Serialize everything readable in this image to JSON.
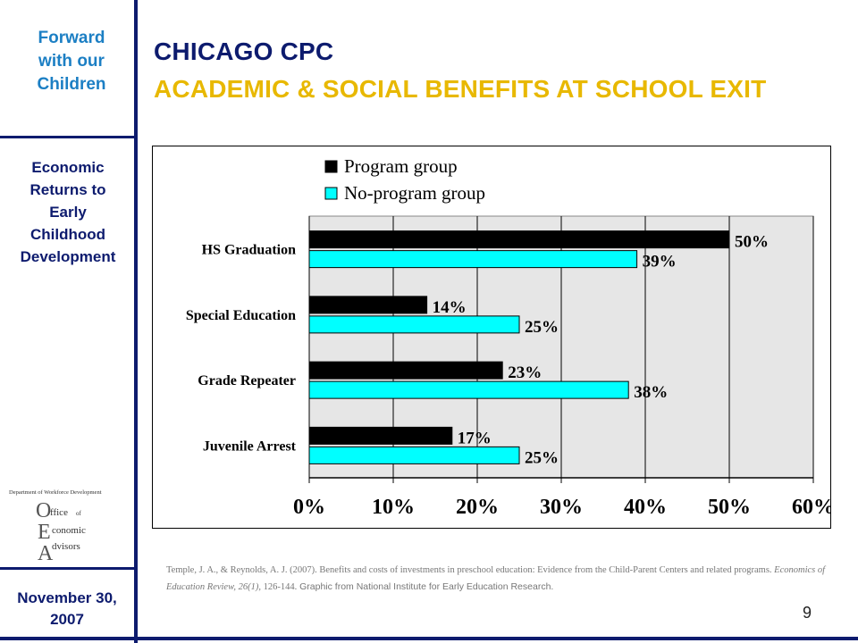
{
  "sidebar": {
    "brand_lines": [
      "Forward",
      "with our",
      "Children"
    ],
    "topic_lines": [
      "Economic",
      "Returns to",
      "Early",
      "Childhood",
      "Development"
    ],
    "date_lines": [
      "November 30,",
      "2007"
    ],
    "logo": {
      "dept_text": "Department of Workforce Development",
      "letters": [
        "O",
        "E",
        "A"
      ],
      "words": [
        "ffice",
        "of",
        "conomic",
        "dvisors"
      ]
    }
  },
  "slide": {
    "title_line1": "CHICAGO CPC",
    "title_line2": "ACADEMIC & SOCIAL BENEFITS AT SCHOOL EXIT",
    "page_number": "9"
  },
  "citation": {
    "part1": "Temple, J. A., & Reynolds, A. J. (2007). Benefits and costs of investments in preschool education: Evidence from the Child-Parent Centers and related programs. ",
    "part2": "Economics of Education Review, 26(1),",
    "part3": " 126-144.",
    "part4": " Graphic from National Institute for Early Education Research."
  },
  "colors": {
    "navy": "#0d1b6e",
    "brand_blue": "#1c7fc4",
    "gold": "#e8b800",
    "cyan": "#00ffff",
    "black": "#000000",
    "plot_bg": "#e6e6e6"
  },
  "chart_data": {
    "type": "bar",
    "orientation": "horizontal",
    "categories": [
      "HS Graduation",
      "Special Education",
      "Grade Repeater",
      "Juvenile Arrest"
    ],
    "series": [
      {
        "name": "Program group",
        "values": [
          50,
          14,
          23,
          17
        ],
        "color": "#000000"
      },
      {
        "name": "No-program group",
        "values": [
          39,
          25,
          38,
          25
        ],
        "color": "#00ffff"
      }
    ],
    "data_labels": [
      [
        "50%",
        "14%",
        "23%",
        "17%"
      ],
      [
        "39%",
        "25%",
        "38%",
        "25%"
      ]
    ],
    "xlim": [
      0,
      60
    ],
    "x_ticks": [
      "0%",
      "10%",
      "20%",
      "30%",
      "40%",
      "50%",
      "60%"
    ],
    "grid": true,
    "legend": "top-left"
  }
}
